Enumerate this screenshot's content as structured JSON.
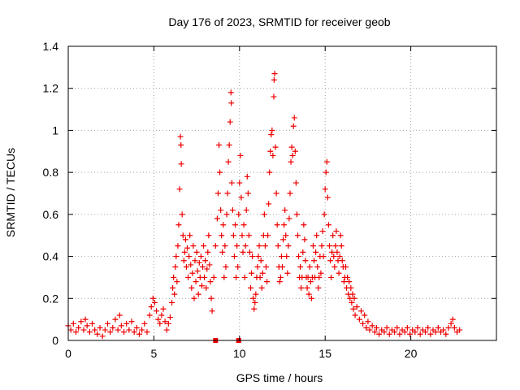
{
  "chart_data": {
    "type": "scatter",
    "title": "Day 176 of 2023, SRMTID for receiver geob",
    "xlabel": "GPS time / hours",
    "ylabel": "SRMTID / TECUs",
    "xlim": [
      0,
      25
    ],
    "ylim": [
      0,
      1.4
    ],
    "xticks": [
      0,
      5,
      10,
      15,
      20
    ],
    "yticks": [
      0,
      0.2,
      0.4,
      0.6,
      0.8,
      1,
      1.2,
      1.4
    ],
    "xtick_labels": [
      "0",
      "5",
      "10",
      "15",
      "20"
    ],
    "ytick_labels": [
      "0",
      "0.2",
      "0.4",
      "0.6",
      "0.8",
      "1",
      "1.2",
      "1.4"
    ],
    "grid": true,
    "marker": "+",
    "color": "#ee0000",
    "series": [
      {
        "name": "SRMTID",
        "points": [
          [
            0.0,
            0.07
          ],
          [
            0.15,
            0.05
          ],
          [
            0.3,
            0.08
          ],
          [
            0.45,
            0.04
          ],
          [
            0.6,
            0.06
          ],
          [
            0.75,
            0.09
          ],
          [
            0.9,
            0.05
          ],
          [
            1.0,
            0.1
          ],
          [
            1.1,
            0.07
          ],
          [
            1.25,
            0.04
          ],
          [
            1.4,
            0.08
          ],
          [
            1.55,
            0.05
          ],
          [
            1.7,
            0.03
          ],
          [
            1.85,
            0.06
          ],
          [
            2.0,
            0.02
          ],
          [
            2.15,
            0.05
          ],
          [
            2.3,
            0.08
          ],
          [
            2.45,
            0.04
          ],
          [
            2.6,
            0.06
          ],
          [
            2.75,
            0.1
          ],
          [
            2.9,
            0.05
          ],
          [
            3.0,
            0.12
          ],
          [
            3.1,
            0.07
          ],
          [
            3.25,
            0.04
          ],
          [
            3.4,
            0.08
          ],
          [
            3.55,
            0.05
          ],
          [
            3.7,
            0.09
          ],
          [
            3.85,
            0.04
          ],
          [
            4.0,
            0.06
          ],
          [
            4.15,
            0.03
          ],
          [
            4.3,
            0.05
          ],
          [
            4.45,
            0.08
          ],
          [
            4.6,
            0.04
          ],
          [
            4.75,
            0.12
          ],
          [
            4.85,
            0.16
          ],
          [
            4.95,
            0.2
          ],
          [
            5.05,
            0.18
          ],
          [
            5.15,
            0.14
          ],
          [
            5.25,
            0.1
          ],
          [
            5.35,
            0.08
          ],
          [
            5.45,
            0.12
          ],
          [
            5.55,
            0.15
          ],
          [
            5.65,
            0.09
          ],
          [
            5.75,
            0.05
          ],
          [
            5.85,
            0.08
          ],
          [
            5.95,
            0.11
          ],
          [
            6.05,
            0.18
          ],
          [
            6.1,
            0.25
          ],
          [
            6.15,
            0.3
          ],
          [
            6.2,
            0.22
          ],
          [
            6.25,
            0.35
          ],
          [
            6.3,
            0.4
          ],
          [
            6.35,
            0.28
          ],
          [
            6.4,
            0.45
          ],
          [
            6.45,
            0.55
          ],
          [
            6.5,
            0.72
          ],
          [
            6.55,
            0.97
          ],
          [
            6.58,
            0.93
          ],
          [
            6.6,
            0.84
          ],
          [
            6.65,
            0.6
          ],
          [
            6.7,
            0.5
          ],
          [
            6.75,
            0.38
          ],
          [
            6.8,
            0.42
          ],
          [
            6.85,
            0.48
          ],
          [
            6.9,
            0.35
          ],
          [
            6.95,
            0.44
          ],
          [
            7.0,
            0.3
          ],
          [
            7.05,
            0.4
          ],
          [
            7.1,
            0.5
          ],
          [
            7.15,
            0.36
          ],
          [
            7.2,
            0.25
          ],
          [
            7.25,
            0.32
          ],
          [
            7.3,
            0.45
          ],
          [
            7.35,
            0.2
          ],
          [
            7.4,
            0.38
          ],
          [
            7.45,
            0.28
          ],
          [
            7.5,
            0.42
          ],
          [
            7.55,
            0.33
          ],
          [
            7.6,
            0.22
          ],
          [
            7.65,
            0.37
          ],
          [
            7.7,
            0.3
          ],
          [
            7.75,
            0.4
          ],
          [
            7.8,
            0.26
          ],
          [
            7.85,
            0.35
          ],
          [
            7.9,
            0.45
          ],
          [
            7.95,
            0.3
          ],
          [
            8.0,
            0.38
          ],
          [
            8.05,
            0.25
          ],
          [
            8.1,
            0.34
          ],
          [
            8.15,
            0.42
          ],
          [
            8.2,
            0.5
          ],
          [
            8.25,
            0.36
          ],
          [
            8.3,
            0.28
          ],
          [
            8.35,
            0.2
          ],
          [
            8.4,
            0.14
          ],
          [
            8.5,
            0.3
          ],
          [
            8.6,
            0.45
          ],
          [
            8.7,
            0.58
          ],
          [
            8.75,
            0.7
          ],
          [
            8.8,
            0.93
          ],
          [
            8.85,
            0.8
          ],
          [
            8.9,
            0.62
          ],
          [
            8.95,
            0.5
          ],
          [
            9.0,
            0.42
          ],
          [
            9.05,
            0.55
          ],
          [
            9.1,
            0.3
          ],
          [
            9.15,
            0.45
          ],
          [
            9.2,
            0.35
          ],
          [
            9.25,
            0.6
          ],
          [
            9.3,
            0.7
          ],
          [
            9.35,
            0.85
          ],
          [
            9.4,
            0.93
          ],
          [
            9.45,
            1.04
          ],
          [
            9.5,
            1.18
          ],
          [
            9.52,
            1.13
          ],
          [
            9.55,
            0.75
          ],
          [
            9.6,
            0.62
          ],
          [
            9.65,
            0.5
          ],
          [
            9.7,
            0.4
          ],
          [
            9.75,
            0.55
          ],
          [
            9.8,
            0.3
          ],
          [
            9.85,
            0.45
          ],
          [
            9.9,
            0.35
          ],
          [
            9.95,
            0.6
          ],
          [
            10.0,
            0.75
          ],
          [
            10.05,
            0.88
          ],
          [
            10.1,
            0.68
          ],
          [
            10.15,
            0.5
          ],
          [
            10.2,
            0.42
          ],
          [
            10.25,
            0.55
          ],
          [
            10.3,
            0.3
          ],
          [
            10.35,
            0.45
          ],
          [
            10.4,
            0.62
          ],
          [
            10.45,
            0.78
          ],
          [
            10.5,
            0.7
          ],
          [
            10.55,
            0.5
          ],
          [
            10.6,
            0.42
          ],
          [
            10.65,
            0.25
          ],
          [
            10.7,
            0.32
          ],
          [
            10.75,
            0.4
          ],
          [
            10.8,
            0.2
          ],
          [
            10.85,
            0.15
          ],
          [
            10.9,
            0.18
          ],
          [
            10.95,
            0.22
          ],
          [
            11.0,
            0.3
          ],
          [
            11.05,
            0.35
          ],
          [
            11.1,
            0.4
          ],
          [
            11.15,
            0.45
          ],
          [
            11.2,
            0.3
          ],
          [
            11.25,
            0.38
          ],
          [
            11.3,
            0.25
          ],
          [
            11.35,
            0.32
          ],
          [
            11.4,
            0.5
          ],
          [
            11.45,
            0.6
          ],
          [
            11.5,
            0.45
          ],
          [
            11.55,
            0.35
          ],
          [
            11.6,
            0.28
          ],
          [
            11.65,
            0.5
          ],
          [
            11.7,
            0.65
          ],
          [
            11.75,
            0.8
          ],
          [
            11.8,
            0.9
          ],
          [
            11.85,
            0.98
          ],
          [
            11.9,
            1.0
          ],
          [
            11.95,
            0.88
          ],
          [
            12.0,
            1.16
          ],
          [
            12.02,
            1.24
          ],
          [
            12.05,
            1.27
          ],
          [
            12.1,
            0.92
          ],
          [
            12.15,
            0.7
          ],
          [
            12.2,
            0.55
          ],
          [
            12.25,
            0.45
          ],
          [
            12.3,
            0.35
          ],
          [
            12.35,
            0.28
          ],
          [
            12.4,
            0.3
          ],
          [
            12.45,
            0.4
          ],
          [
            12.5,
            0.35
          ],
          [
            12.55,
            0.48
          ],
          [
            12.6,
            0.55
          ],
          [
            12.65,
            0.62
          ],
          [
            12.7,
            0.5
          ],
          [
            12.75,
            0.4
          ],
          [
            12.8,
            0.32
          ],
          [
            12.85,
            0.45
          ],
          [
            12.9,
            0.58
          ],
          [
            12.95,
            0.7
          ],
          [
            13.0,
            0.85
          ],
          [
            13.05,
            0.92
          ],
          [
            13.1,
            0.88
          ],
          [
            13.15,
            1.02
          ],
          [
            13.2,
            1.06
          ],
          [
            13.25,
            0.9
          ],
          [
            13.3,
            0.75
          ],
          [
            13.35,
            0.6
          ],
          [
            13.4,
            0.5
          ],
          [
            13.45,
            0.4
          ],
          [
            13.5,
            0.3
          ],
          [
            13.55,
            0.35
          ],
          [
            13.6,
            0.25
          ],
          [
            13.65,
            0.3
          ],
          [
            13.7,
            0.42
          ],
          [
            13.75,
            0.55
          ],
          [
            13.8,
            0.48
          ],
          [
            13.85,
            0.38
          ],
          [
            13.9,
            0.3
          ],
          [
            13.95,
            0.25
          ],
          [
            14.0,
            0.3
          ],
          [
            14.05,
            0.22
          ],
          [
            14.1,
            0.35
          ],
          [
            14.15,
            0.28
          ],
          [
            14.2,
            0.2
          ],
          [
            14.25,
            0.3
          ],
          [
            14.3,
            0.45
          ],
          [
            14.35,
            0.38
          ],
          [
            14.4,
            0.3
          ],
          [
            14.45,
            0.42
          ],
          [
            14.5,
            0.5
          ],
          [
            14.55,
            0.35
          ],
          [
            14.6,
            0.25
          ],
          [
            14.65,
            0.3
          ],
          [
            14.7,
            0.4
          ],
          [
            14.75,
            0.32
          ],
          [
            14.8,
            0.45
          ],
          [
            14.85,
            0.52
          ],
          [
            14.9,
            0.4
          ],
          [
            14.95,
            0.6
          ],
          [
            15.0,
            0.72
          ],
          [
            15.05,
            0.8
          ],
          [
            15.1,
            0.85
          ],
          [
            15.15,
            0.68
          ],
          [
            15.2,
            0.55
          ],
          [
            15.25,
            0.45
          ],
          [
            15.3,
            0.38
          ],
          [
            15.35,
            0.3
          ],
          [
            15.4,
            0.42
          ],
          [
            15.45,
            0.5
          ],
          [
            15.5,
            0.4
          ],
          [
            15.55,
            0.35
          ],
          [
            15.6,
            0.45
          ],
          [
            15.65,
            0.52
          ],
          [
            15.7,
            0.42
          ],
          [
            15.75,
            0.38
          ],
          [
            15.8,
            0.32
          ],
          [
            15.85,
            0.4
          ],
          [
            15.9,
            0.5
          ],
          [
            15.95,
            0.45
          ],
          [
            16.0,
            0.38
          ],
          [
            16.05,
            0.35
          ],
          [
            16.1,
            0.28
          ],
          [
            16.15,
            0.3
          ],
          [
            16.2,
            0.35
          ],
          [
            16.25,
            0.25
          ],
          [
            16.3,
            0.3
          ],
          [
            16.35,
            0.22
          ],
          [
            16.4,
            0.28
          ],
          [
            16.45,
            0.2
          ],
          [
            16.5,
            0.25
          ],
          [
            16.55,
            0.18
          ],
          [
            16.6,
            0.22
          ],
          [
            16.65,
            0.15
          ],
          [
            16.7,
            0.2
          ],
          [
            16.75,
            0.12
          ],
          [
            16.85,
            0.16
          ],
          [
            17.0,
            0.1
          ],
          [
            17.1,
            0.14
          ],
          [
            17.2,
            0.08
          ],
          [
            17.3,
            0.12
          ],
          [
            17.4,
            0.06
          ],
          [
            17.5,
            0.09
          ],
          [
            17.6,
            0.05
          ],
          [
            17.75,
            0.07
          ],
          [
            17.9,
            0.04
          ],
          [
            18.0,
            0.06
          ],
          [
            18.15,
            0.03
          ],
          [
            18.3,
            0.05
          ],
          [
            18.45,
            0.04
          ],
          [
            18.6,
            0.06
          ],
          [
            18.75,
            0.03
          ],
          [
            18.9,
            0.05
          ],
          [
            19.05,
            0.04
          ],
          [
            19.2,
            0.06
          ],
          [
            19.35,
            0.03
          ],
          [
            19.5,
            0.05
          ],
          [
            19.65,
            0.04
          ],
          [
            19.8,
            0.06
          ],
          [
            19.95,
            0.03
          ],
          [
            20.1,
            0.05
          ],
          [
            20.25,
            0.04
          ],
          [
            20.4,
            0.06
          ],
          [
            20.55,
            0.03
          ],
          [
            20.7,
            0.05
          ],
          [
            20.85,
            0.04
          ],
          [
            21.0,
            0.06
          ],
          [
            21.15,
            0.03
          ],
          [
            21.3,
            0.05
          ],
          [
            21.45,
            0.04
          ],
          [
            21.6,
            0.06
          ],
          [
            21.75,
            0.04
          ],
          [
            21.9,
            0.05
          ],
          [
            22.05,
            0.03
          ],
          [
            22.2,
            0.06
          ],
          [
            22.35,
            0.08
          ],
          [
            22.45,
            0.1
          ],
          [
            22.55,
            0.06
          ],
          [
            22.7,
            0.04
          ],
          [
            22.85,
            0.05
          ]
        ]
      }
    ],
    "markers": [
      {
        "x": 8.6,
        "y": 0.0,
        "shape": "filled-square"
      },
      {
        "x": 9.95,
        "y": 0.0,
        "shape": "filled-square"
      }
    ]
  }
}
